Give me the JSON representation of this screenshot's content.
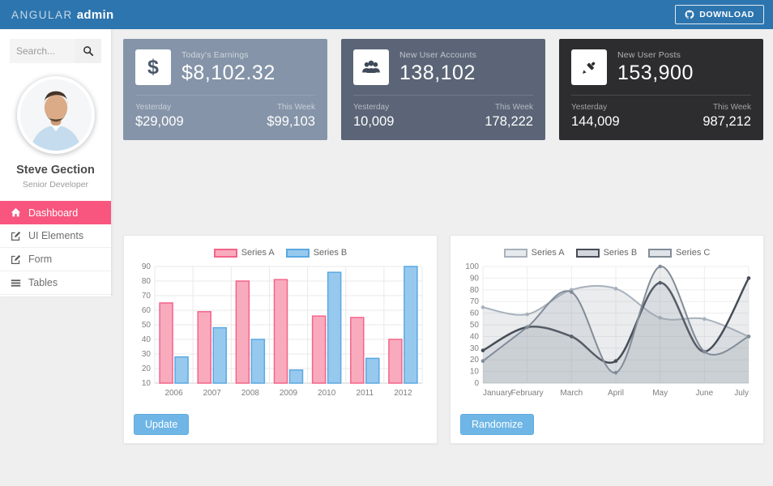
{
  "header": {
    "brand_light": "ANGULAR",
    "brand_bold": "admin",
    "download_label": "DOWNLOAD"
  },
  "sidebar": {
    "search_placeholder": "Search...",
    "user": {
      "name": "Steve Gection",
      "role": "Senior Developer"
    },
    "menu": [
      {
        "label": "Dashboard",
        "icon": "home-icon",
        "active": true
      },
      {
        "label": "UI Elements",
        "icon": "edit-icon",
        "active": false
      },
      {
        "label": "Form",
        "icon": "edit-icon",
        "active": false
      },
      {
        "label": "Tables",
        "icon": "list-icon",
        "active": false
      }
    ],
    "active_color": "#f8567e"
  },
  "cards": [
    {
      "icon": "dollar-icon",
      "icon_glyph": "$",
      "title": "Today's Earnings",
      "value": "$8,102.32",
      "yesterday_label": "Yesterday",
      "yesterday_value": "$29,009",
      "week_label": "This Week",
      "week_value": "$99,103",
      "bg": "#8594a8"
    },
    {
      "icon": "users-icon",
      "title": "New User Accounts",
      "value": "138,102",
      "yesterday_label": "Yesterday",
      "yesterday_value": "10,009",
      "week_label": "This Week",
      "week_value": "178,222",
      "bg": "#5b6577"
    },
    {
      "icon": "pencil-icon",
      "title": "New User Posts",
      "value": "153,900",
      "yesterday_label": "Yesterday",
      "yesterday_value": "144,009",
      "week_label": "This Week",
      "week_value": "987,212",
      "bg": "#2d2d2f"
    }
  ],
  "bar_panel": {
    "button_label": "Update"
  },
  "line_panel": {
    "button_label": "Randomize"
  },
  "chart_data": [
    {
      "type": "bar",
      "categories": [
        "2006",
        "2007",
        "2008",
        "2009",
        "2010",
        "2011",
        "2012"
      ],
      "series": [
        {
          "name": "Series A",
          "values": [
            65,
            59,
            80,
            81,
            56,
            55,
            40
          ],
          "fill": "#f9abbe",
          "border": "#f4648a"
        },
        {
          "name": "Series B",
          "values": [
            28,
            48,
            40,
            19,
            86,
            27,
            90
          ],
          "fill": "#97c9ef",
          "border": "#5aa9e0"
        }
      ],
      "ylim": [
        10,
        90
      ],
      "ytick_step": 10,
      "grid": true,
      "legend_position": "top",
      "xlabel": "",
      "ylabel": ""
    },
    {
      "type": "line",
      "x": [
        "January",
        "February",
        "March",
        "April",
        "May",
        "June",
        "July"
      ],
      "series": [
        {
          "name": "Series A",
          "values": [
            65,
            59,
            80,
            81,
            56,
            55,
            40
          ],
          "stroke": "#a8b1bc",
          "legend_fill": "#e7eaed",
          "width": 2
        },
        {
          "name": "Series B",
          "values": [
            28,
            48,
            40,
            19,
            86,
            27,
            90
          ],
          "stroke": "#464d57",
          "legend_fill": "#d3d7dc",
          "width": 2.5
        },
        {
          "name": "Series C",
          "values": [
            19,
            48,
            78,
            9,
            100,
            27,
            40
          ],
          "stroke": "#828c99",
          "legend_fill": "#e0e3e7",
          "width": 2
        }
      ],
      "area_fill": "rgba(150,159,171,0.20)",
      "ylim": [
        0,
        100
      ],
      "ytick_step": 10,
      "grid": true,
      "legend_position": "top",
      "xlabel": "",
      "ylabel": ""
    }
  ]
}
